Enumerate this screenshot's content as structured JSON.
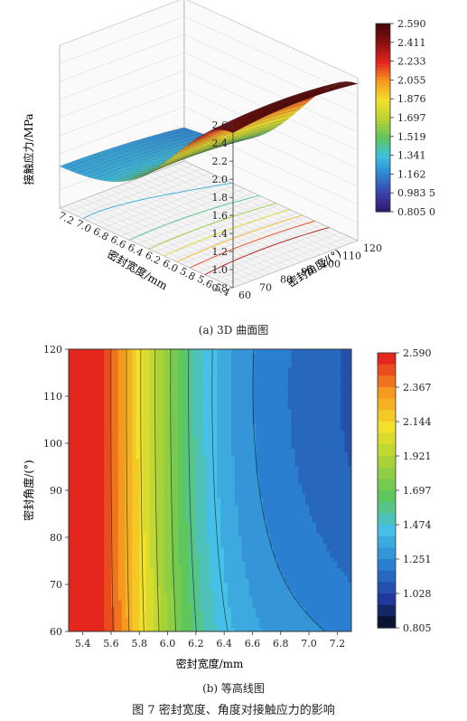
{
  "figure": {
    "caption": "图 7    密封宽度、角度对接触应力的影响",
    "panel_a_caption": "(a)  3D 曲面图",
    "panel_b_caption": "(b)  等高线图"
  },
  "chart_data": [
    {
      "type": "surface3d",
      "title": "",
      "xlabel": "密封宽度/mm",
      "ylabel": "密封角度/(°)",
      "zlabel": "接触应力/MPa",
      "x_ticks": [
        "5.4",
        "5.6",
        "5.8",
        "6.0",
        "6.2",
        "6.4",
        "6.6",
        "6.8",
        "7.0",
        "7.2"
      ],
      "y_ticks": [
        "60",
        "70",
        "80",
        "90",
        "100",
        "110",
        "120"
      ],
      "z_ticks": [
        "0.8",
        "1.0",
        "1.2",
        "1.4",
        "1.6",
        "1.8",
        "2.0",
        "2.2",
        "2.4",
        "2.6"
      ],
      "xlim": [
        5.3,
        7.3
      ],
      "ylim": [
        60,
        120
      ],
      "zlim": [
        0.8,
        2.6
      ],
      "colorbar_ticks": [
        "2.590",
        "2.411",
        "2.233",
        "2.055",
        "1.876",
        "1.697",
        "1.519",
        "1.341",
        "1.162",
        "0.983 5",
        "0.805 0"
      ],
      "colorbar_range": [
        0.805,
        2.59
      ],
      "colormap": [
        "#2a1560",
        "#3a3ea8",
        "#2f7fd0",
        "#3cc0e0",
        "#5fc65c",
        "#b8d234",
        "#f3e12a",
        "#f59a1e",
        "#e5261c",
        "#8e1010",
        "#4a0808"
      ]
    },
    {
      "type": "contour",
      "title": "",
      "xlabel": "密封宽度/mm",
      "ylabel": "密封角度/(°)",
      "x_ticks": [
        "5.4",
        "5.6",
        "5.8",
        "6.0",
        "6.2",
        "6.4",
        "6.6",
        "6.8",
        "7.0",
        "7.2"
      ],
      "y_ticks": [
        "60",
        "70",
        "80",
        "90",
        "100",
        "110",
        "120"
      ],
      "xlim": [
        5.3,
        7.3
      ],
      "ylim": [
        60,
        120
      ],
      "colorbar_ticks": [
        "2.590",
        "2.367",
        "2.144",
        "1.921",
        "1.697",
        "1.474",
        "1.251",
        "1.028",
        "0.805"
      ],
      "colorbar_range": [
        0.805,
        2.59
      ],
      "colormap": [
        "#000000",
        "#1f3a9a",
        "#2b7fd0",
        "#46c0e6",
        "#5fc65c",
        "#a8d238",
        "#f2e02a",
        "#f59a1e",
        "#e5261c"
      ]
    }
  ]
}
